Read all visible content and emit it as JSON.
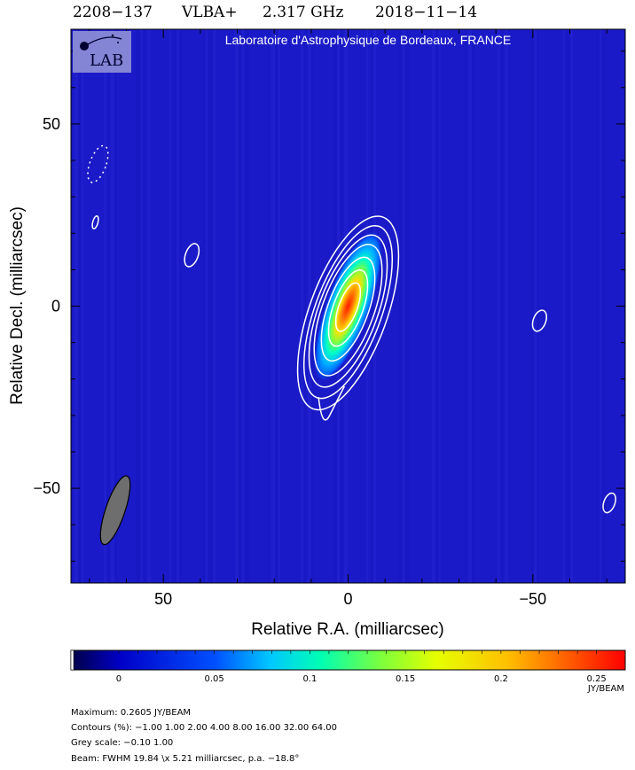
{
  "header": {
    "source": "2208−137",
    "array": "VLBA+",
    "frequency": "2.317 GHz",
    "date": "2018−11−14"
  },
  "lab": {
    "logo_text": "LAB",
    "caption": "Laboratoire d'Astrophysique de Bordeaux, FRANCE"
  },
  "chart_data": {
    "type": "heatmap",
    "xlabel": "Relative R.A. (milliarcsec)",
    "ylabel": "Relative Decl. (milliarcsec)",
    "xlim": [
      75,
      -75
    ],
    "ylim": [
      -76,
      76
    ],
    "x_ticks": [
      {
        "value": 50,
        "label": "50"
      },
      {
        "value": 0,
        "label": "0"
      },
      {
        "value": -50,
        "label": "−50"
      }
    ],
    "y_ticks": [
      {
        "value": 50,
        "label": "50"
      },
      {
        "value": 0,
        "label": "0"
      },
      {
        "value": -50,
        "label": "−50"
      }
    ],
    "colorbar": {
      "range": [
        -0.025,
        0.265
      ],
      "unit": "JY/BEAM",
      "ticks": [
        {
          "value": 0,
          "label": "0"
        },
        {
          "value": 0.05,
          "label": "0.05"
        },
        {
          "value": 0.1,
          "label": "0.1"
        },
        {
          "value": 0.15,
          "label": "0.15"
        },
        {
          "value": 0.2,
          "label": "0.2"
        },
        {
          "value": 0.25,
          "label": "0.25"
        }
      ]
    },
    "peak": {
      "x": 0,
      "y": 0,
      "value": 0.2605
    },
    "beam": {
      "major_mas": 19.84,
      "minor_mas": 5.21,
      "pa_deg": -18.8,
      "x": 63,
      "y": -56
    },
    "contour_levels_percent": [
      -1.0,
      1.0,
      2.0,
      4.0,
      8.0,
      16.0,
      32.0,
      64.0
    ],
    "contour_features": [
      {
        "x": 68.4,
        "y": 23,
        "rx": 0.7,
        "ry": 1.8,
        "angle": 15
      },
      {
        "x": 42.3,
        "y": 14,
        "rx": 1.7,
        "ry": 3.3,
        "angle": 20
      },
      {
        "x": -51.8,
        "y": -4,
        "rx": 1.7,
        "ry": 3.0,
        "angle": 20
      },
      {
        "x": -70.7,
        "y": -54,
        "rx": 1.5,
        "ry": 2.8,
        "angle": 20
      }
    ],
    "negative_contours": [
      {
        "x": 67.7,
        "y": 39,
        "rx": 2.2,
        "ry": 5.3,
        "angle": 20
      }
    ],
    "colors": {
      "background": "#1a1ac8",
      "contour": "#ffffff",
      "colormap": [
        "#000046",
        "#0000c8",
        "#0050ff",
        "#00c8ff",
        "#00ffb4",
        "#7cff3c",
        "#e6ff00",
        "#ffbe00",
        "#ff5a00",
        "#ff0000"
      ]
    }
  },
  "footer": {
    "maximum": "Maximum: 0.2605 JY/BEAM",
    "contours": "Contours (%): −1.00 1.00 2.00 4.00 8.00 16.00 32.00 64.00",
    "grey_scale": "Grey scale: −0.10 1.00",
    "beam": "Beam: FWHM 19.84 \\x 5.21 milliarcsec, p.a. −18.8°"
  }
}
